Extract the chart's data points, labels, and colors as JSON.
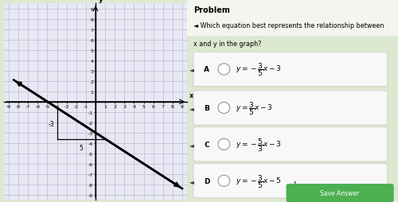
{
  "title": "Problem",
  "question_line1": "◄ Which equation best represents the relationship between",
  "question_line2": "x and y in the graph?",
  "graph": {
    "xlim": [
      -9.5,
      9.5
    ],
    "ylim": [
      -9.5,
      9.5
    ],
    "xticks": [
      -9,
      -8,
      -7,
      -6,
      -5,
      -4,
      -3,
      -2,
      -1,
      0,
      1,
      2,
      3,
      4,
      5,
      6,
      7,
      8,
      9
    ],
    "yticks": [
      -9,
      -8,
      -7,
      -6,
      -5,
      -4,
      -3,
      -2,
      -1,
      0,
      1,
      2,
      3,
      4,
      5,
      6,
      7,
      8,
      9
    ],
    "line_slope": -0.6,
    "line_intercept": -3,
    "line_x_start": -8.5,
    "line_x_end": 9.0
  },
  "slope_tri": {
    "sx": -4,
    "rise": -3,
    "run": 5,
    "rise_label": "-3",
    "run_label": "5"
  },
  "choices": [
    {
      "label": "A",
      "eq": "$y = -\\dfrac{3}{5}x - 3$"
    },
    {
      "label": "B",
      "eq": "$y = \\dfrac{3}{5}x - 3$"
    },
    {
      "label": "C",
      "eq": "$y = -\\dfrac{5}{3}x - 3$"
    },
    {
      "label": "D",
      "eq": "$y = -\\dfrac{3}{5}x - 5$"
    }
  ],
  "bg_outer": "#dde8d0",
  "bg_right": "#e8f0e8",
  "bg_top": "#f5f5f0",
  "graph_bg": "#e8e8f4",
  "grid_color": "#b0b0cc",
  "line_color": "#000000",
  "axis_color": "#000000",
  "choice_bg": "#f8f8f8",
  "choice_border": "#cccccc"
}
